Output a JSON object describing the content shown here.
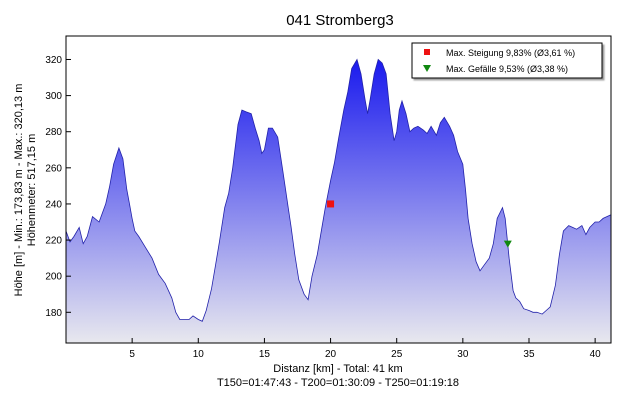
{
  "chart_data": {
    "type": "area",
    "title": "041 Stromberg3",
    "xlabel": "Distanz [km] - Total: 41 km",
    "xlabel2": "T150=01:47:43 - T200=01:30:09 - T250=01:19:18",
    "ylabel": "Höhe [m] - Min.: 173,83 m - Max.: 320,13 m",
    "ylabel2": "Höhenmeter: 517,15 m",
    "xlim": [
      0,
      41.2
    ],
    "ylim": [
      163,
      333
    ],
    "x_ticks": [
      5,
      10,
      15,
      20,
      25,
      30,
      35,
      40
    ],
    "x_tick_labels": [
      "5",
      "10",
      "15",
      "20",
      "25",
      "30",
      "35",
      "40"
    ],
    "y_ticks": [
      180,
      200,
      220,
      240,
      260,
      280,
      300,
      320
    ],
    "y_tick_labels": [
      "180",
      "200",
      "220",
      "240",
      "260",
      "280",
      "300",
      "320"
    ],
    "grid": false,
    "legend_position": "top-right",
    "fill_color_top": "#1a1aee",
    "fill_color_bottom": "#e8e8ee",
    "line_color": "#2222aa",
    "series": [
      {
        "x": [
          0,
          0.3,
          0.6,
          1.0,
          1.3,
          1.6,
          2.0,
          2.5,
          3.0,
          3.3,
          3.6,
          4.0,
          4.3,
          4.6,
          4.8,
          5.0,
          5.2,
          5.5,
          6.0,
          6.5,
          7.0,
          7.5,
          8.0,
          8.3,
          8.6,
          9.0,
          9.3,
          9.6,
          10.0,
          10.3,
          10.6,
          11.0,
          11.3,
          11.6,
          12.0,
          12.3,
          12.6,
          13.0,
          13.3,
          13.6,
          14.0,
          14.3,
          14.6,
          14.8,
          15.0,
          15.3,
          15.6,
          16.0,
          16.4,
          16.8,
          17.0,
          17.3,
          17.6,
          18.0,
          18.3,
          18.6,
          19.0,
          19.3,
          19.6,
          20.0,
          20.3,
          20.6,
          21.0,
          21.3,
          21.6,
          22.0,
          22.3,
          22.6,
          22.8,
          23.0,
          23.3,
          23.6,
          23.9,
          24.2,
          24.5,
          24.8,
          25.0,
          25.2,
          25.4,
          25.7,
          26.0,
          26.3,
          26.6,
          27.0,
          27.3,
          27.6,
          28.0,
          28.3,
          28.6,
          29.0,
          29.3,
          29.6,
          30.0,
          30.2,
          30.4,
          30.7,
          31.0,
          31.3,
          31.6,
          32.0,
          32.3,
          32.6,
          33.0,
          33.2,
          33.5,
          33.8,
          34.0,
          34.3,
          34.6,
          35.0,
          35.3,
          35.6,
          36.0,
          36.3,
          36.6,
          37.0,
          37.3,
          37.6,
          38.0,
          38.3,
          38.6,
          39.0,
          39.3,
          39.6,
          40.0,
          40.3,
          40.6,
          41.2
        ],
        "y": [
          225,
          219,
          222,
          227,
          218,
          222,
          233,
          230,
          240,
          250,
          262,
          271,
          265,
          248,
          240,
          232,
          225,
          222,
          216,
          210,
          201,
          196,
          188,
          180,
          176,
          176,
          176,
          178,
          176,
          175,
          181,
          193,
          206,
          219,
          238,
          246,
          260,
          284,
          292,
          291,
          290,
          282,
          275,
          268,
          270,
          282,
          282,
          277,
          258,
          238,
          228,
          212,
          198,
          190,
          187,
          200,
          212,
          225,
          238,
          253,
          263,
          276,
          292,
          302,
          315,
          320,
          312,
          298,
          290,
          298,
          312,
          320,
          318,
          312,
          290,
          275,
          280,
          292,
          297,
          290,
          280,
          282,
          283,
          281,
          279,
          283,
          278,
          285,
          288,
          283,
          278,
          269,
          262,
          248,
          232,
          218,
          208,
          203,
          206,
          210,
          218,
          232,
          238,
          232,
          210,
          192,
          188,
          186,
          182,
          181,
          180,
          180,
          179,
          181,
          183,
          195,
          212,
          225,
          228,
          227,
          226,
          228,
          223,
          227,
          230,
          230,
          232,
          234
        ]
      }
    ],
    "markers": [
      {
        "label": "Max. Steigung 9,83% (Ø3,61 %)",
        "symbol": "square",
        "color": "#ee1111",
        "x": 20.0,
        "y": 240
      },
      {
        "label": "Max. Gefälle 9,53% (Ø3,38 %)",
        "symbol": "triangle-down",
        "color": "#118811",
        "x": 33.4,
        "y": 218
      }
    ]
  }
}
